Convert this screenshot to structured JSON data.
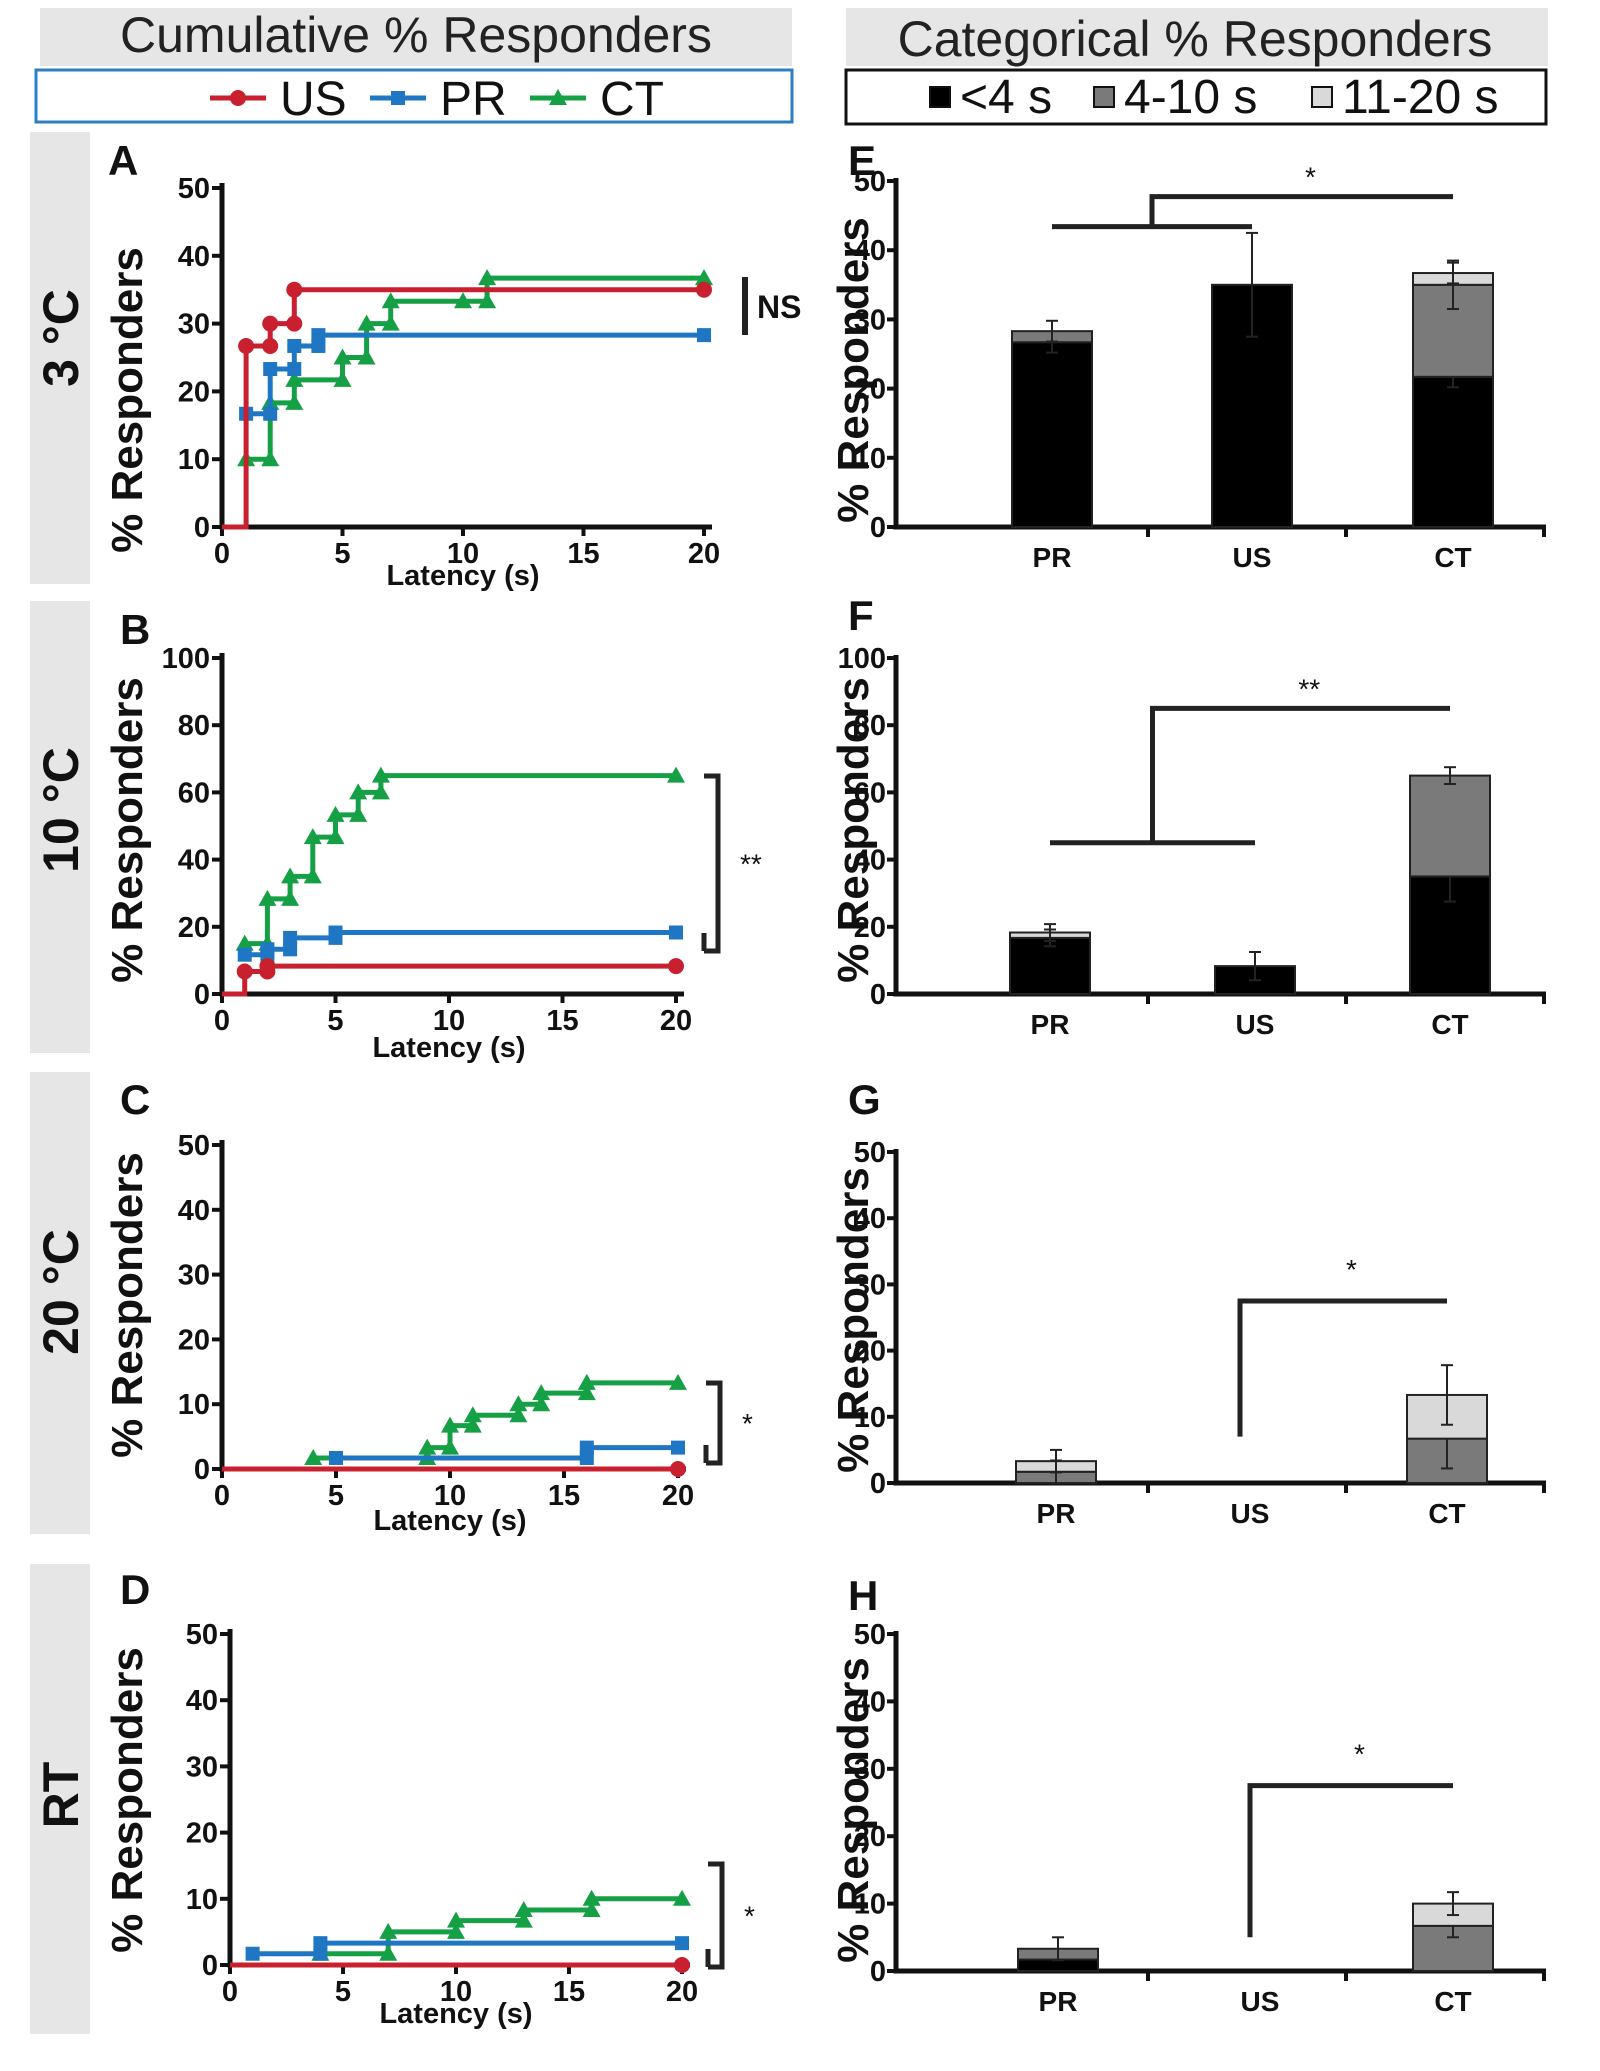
{
  "header": {
    "left_title": "Cumulative % Responders",
    "right_title": "Categorical % Responders"
  },
  "legend_left": [
    {
      "label": "US",
      "color": "#c8202f",
      "marker": "circle"
    },
    {
      "label": "PR",
      "color": "#1f77c4",
      "marker": "square"
    },
    {
      "label": "CT",
      "color": "#15a045",
      "marker": "triangle"
    }
  ],
  "legend_right": [
    {
      "label": "<4 s",
      "color": "#000000"
    },
    {
      "label": "4-10 s",
      "color": "#7a7a7a"
    },
    {
      "label": "11-20 s",
      "color": "#d9d9d9"
    }
  ],
  "rows": [
    "3 °C",
    "10 °C",
    "20 °C",
    "RT"
  ],
  "chart_data": [
    {
      "panel": "A",
      "type": "line",
      "step": true,
      "xlabel": "Latency (s)",
      "ylabel": "% Responders",
      "xlim": [
        0,
        20
      ],
      "ylim": [
        0,
        50
      ],
      "xticks": [
        0,
        5,
        10,
        15,
        20
      ],
      "yticks": [
        0,
        10,
        20,
        30,
        40,
        50
      ],
      "annotation": "NS",
      "series": [
        {
          "name": "US",
          "points": [
            [
              0,
              0
            ],
            [
              1,
              0
            ],
            [
              1,
              26.7
            ],
            [
              2,
              26.7
            ],
            [
              2,
              30
            ],
            [
              3,
              30
            ],
            [
              3,
              35
            ],
            [
              20,
              35
            ]
          ]
        },
        {
          "name": "PR",
          "points": [
            [
              1,
              16.7
            ],
            [
              2,
              16.7
            ],
            [
              2,
              23.3
            ],
            [
              3,
              23.3
            ],
            [
              3,
              26.7
            ],
            [
              4,
              26.7
            ],
            [
              4,
              28.3
            ],
            [
              20,
              28.3
            ]
          ]
        },
        {
          "name": "CT",
          "points": [
            [
              1,
              10
            ],
            [
              2,
              10
            ],
            [
              2,
              18.3
            ],
            [
              3,
              18.3
            ],
            [
              3,
              21.7
            ],
            [
              5,
              21.7
            ],
            [
              5,
              25
            ],
            [
              6,
              25
            ],
            [
              6,
              30
            ],
            [
              7,
              30
            ],
            [
              7,
              33.3
            ],
            [
              10,
              33.3
            ],
            [
              11,
              33.3
            ],
            [
              11,
              36.7
            ],
            [
              20,
              36.7
            ]
          ]
        }
      ]
    },
    {
      "panel": "B",
      "type": "line",
      "step": true,
      "xlabel": "Latency (s)",
      "ylabel": "% Responders",
      "xlim": [
        0,
        20
      ],
      "ylim": [
        0,
        100
      ],
      "xticks": [
        0,
        5,
        10,
        15,
        20
      ],
      "yticks": [
        0,
        20,
        40,
        60,
        80,
        100
      ],
      "annotation": "**",
      "series": [
        {
          "name": "US",
          "points": [
            [
              0,
              0
            ],
            [
              1,
              0
            ],
            [
              1,
              6.7
            ],
            [
              2,
              6.7
            ],
            [
              2,
              8.3
            ],
            [
              20,
              8.3
            ]
          ]
        },
        {
          "name": "PR",
          "points": [
            [
              1,
              11.7
            ],
            [
              2,
              11.7
            ],
            [
              2,
              13.3
            ],
            [
              3,
              13.3
            ],
            [
              3,
              16.7
            ],
            [
              5,
              16.7
            ],
            [
              5,
              18.3
            ],
            [
              20,
              18.3
            ]
          ]
        },
        {
          "name": "CT",
          "points": [
            [
              1,
              15
            ],
            [
              2,
              15
            ],
            [
              2,
              28.3
            ],
            [
              3,
              28.3
            ],
            [
              3,
              35
            ],
            [
              4,
              35
            ],
            [
              4,
              46.7
            ],
            [
              5,
              46.7
            ],
            [
              5,
              53.3
            ],
            [
              6,
              53.3
            ],
            [
              6,
              60
            ],
            [
              7,
              60
            ],
            [
              7,
              65
            ],
            [
              20,
              65
            ]
          ]
        }
      ]
    },
    {
      "panel": "C",
      "type": "line",
      "step": true,
      "xlabel": "Latency (s)",
      "ylabel": "% Responders",
      "xlim": [
        0,
        20
      ],
      "ylim": [
        0,
        50
      ],
      "xticks": [
        0,
        5,
        10,
        15,
        20
      ],
      "yticks": [
        0,
        10,
        20,
        30,
        40,
        50
      ],
      "annotation": "*",
      "series": [
        {
          "name": "US",
          "points": [
            [
              0,
              0
            ],
            [
              20,
              0
            ]
          ]
        },
        {
          "name": "PR",
          "points": [
            [
              5,
              1.7
            ],
            [
              16,
              1.7
            ],
            [
              16,
              3.3
            ],
            [
              20,
              3.3
            ]
          ]
        },
        {
          "name": "CT",
          "points": [
            [
              4,
              1.7
            ],
            [
              9,
              1.7
            ],
            [
              9,
              3.3
            ],
            [
              10,
              3.3
            ],
            [
              10,
              6.7
            ],
            [
              11,
              6.7
            ],
            [
              11,
              8.3
            ],
            [
              13,
              8.3
            ],
            [
              13,
              10
            ],
            [
              14,
              10
            ],
            [
              14,
              11.7
            ],
            [
              16,
              11.7
            ],
            [
              16,
              13.3
            ],
            [
              20,
              13.3
            ]
          ]
        }
      ]
    },
    {
      "panel": "D",
      "type": "line",
      "step": true,
      "xlabel": "Latency (s)",
      "ylabel": "% Responders",
      "xlim": [
        0,
        20
      ],
      "ylim": [
        0,
        50
      ],
      "xticks": [
        0,
        5,
        10,
        15,
        20
      ],
      "yticks": [
        0,
        10,
        20,
        30,
        40,
        50
      ],
      "annotation": "*",
      "series": [
        {
          "name": "US",
          "points": [
            [
              0,
              0
            ],
            [
              20,
              0
            ]
          ]
        },
        {
          "name": "PR",
          "points": [
            [
              1,
              1.7
            ],
            [
              4,
              1.7
            ],
            [
              4,
              3.3
            ],
            [
              20,
              3.3
            ]
          ]
        },
        {
          "name": "CT",
          "points": [
            [
              4,
              1.7
            ],
            [
              7,
              1.7
            ],
            [
              7,
              5
            ],
            [
              10,
              5
            ],
            [
              10,
              6.7
            ],
            [
              13,
              6.7
            ],
            [
              13,
              8.3
            ],
            [
              16,
              8.3
            ],
            [
              16,
              10
            ],
            [
              20,
              10
            ]
          ]
        }
      ]
    },
    {
      "panel": "E",
      "type": "bar",
      "stacked": true,
      "ylabel": "% Responders",
      "ylim": [
        0,
        50
      ],
      "yticks": [
        0,
        10,
        20,
        30,
        40,
        50
      ],
      "categories": [
        "PR",
        "US",
        "CT"
      ],
      "series": [
        {
          "name": "<4 s",
          "values": [
            26.7,
            35,
            21.7
          ],
          "err": [
            1.5,
            7.5,
            1.5
          ]
        },
        {
          "name": "4-10 s",
          "values": [
            1.6,
            0,
            13.3
          ],
          "err": [
            1.5,
            0,
            3.5
          ]
        },
        {
          "name": "11-20 s",
          "values": [
            0,
            0,
            1.7
          ],
          "err": [
            0,
            0,
            1.5
          ]
        }
      ],
      "annotation": {
        "label": "*",
        "from": [
          "PR",
          "US"
        ],
        "to": "CT"
      }
    },
    {
      "panel": "F",
      "type": "bar",
      "stacked": true,
      "ylabel": "% Responders",
      "ylim": [
        0,
        100
      ],
      "yticks": [
        0,
        20,
        40,
        60,
        80,
        100
      ],
      "categories": [
        "PR",
        "US",
        "CT"
      ],
      "series": [
        {
          "name": "<4 s",
          "values": [
            16.7,
            8.3,
            35
          ],
          "err": [
            2.5,
            4.2,
            7.5
          ]
        },
        {
          "name": "4-10 s",
          "values": [
            0,
            0,
            30
          ],
          "err": [
            0,
            0,
            2.5
          ]
        },
        {
          "name": "11-20 s",
          "values": [
            1.6,
            0,
            0
          ],
          "err": [
            2.5,
            0,
            0
          ]
        }
      ],
      "annotation": {
        "label": "**",
        "from": [
          "PR",
          "US"
        ],
        "to": "CT"
      }
    },
    {
      "panel": "G",
      "type": "bar",
      "stacked": true,
      "ylabel": "% Responders",
      "ylim": [
        0,
        50
      ],
      "yticks": [
        0,
        10,
        20,
        30,
        40,
        50
      ],
      "categories": [
        "PR",
        "US",
        "CT"
      ],
      "series": [
        {
          "name": "<4 s",
          "values": [
            0,
            0,
            0
          ],
          "err": [
            0,
            0,
            0
          ]
        },
        {
          "name": "4-10 s",
          "values": [
            1.7,
            0,
            6.7
          ],
          "err": [
            1.7,
            0,
            4.5
          ]
        },
        {
          "name": "11-20 s",
          "values": [
            1.6,
            0,
            6.6
          ],
          "err": [
            1.7,
            0,
            4.5
          ]
        }
      ],
      "annotation": {
        "label": "*",
        "from": [
          "US"
        ],
        "to": "CT"
      }
    },
    {
      "panel": "H",
      "type": "bar",
      "stacked": true,
      "ylabel": "% Responders",
      "ylim": [
        0,
        50
      ],
      "yticks": [
        0,
        10,
        20,
        30,
        40,
        50
      ],
      "categories": [
        "PR",
        "US",
        "CT"
      ],
      "series": [
        {
          "name": "<4 s",
          "values": [
            1.7,
            0,
            0
          ],
          "err": [
            0,
            0,
            0
          ]
        },
        {
          "name": "4-10 s",
          "values": [
            1.6,
            0,
            6.7
          ],
          "err": [
            1.7,
            0,
            1.7
          ]
        },
        {
          "name": "11-20 s",
          "values": [
            0,
            0,
            3.3
          ],
          "err": [
            0,
            0,
            1.7
          ]
        }
      ],
      "annotation": {
        "label": "*",
        "from": [
          "US"
        ],
        "to": "CT"
      }
    }
  ]
}
